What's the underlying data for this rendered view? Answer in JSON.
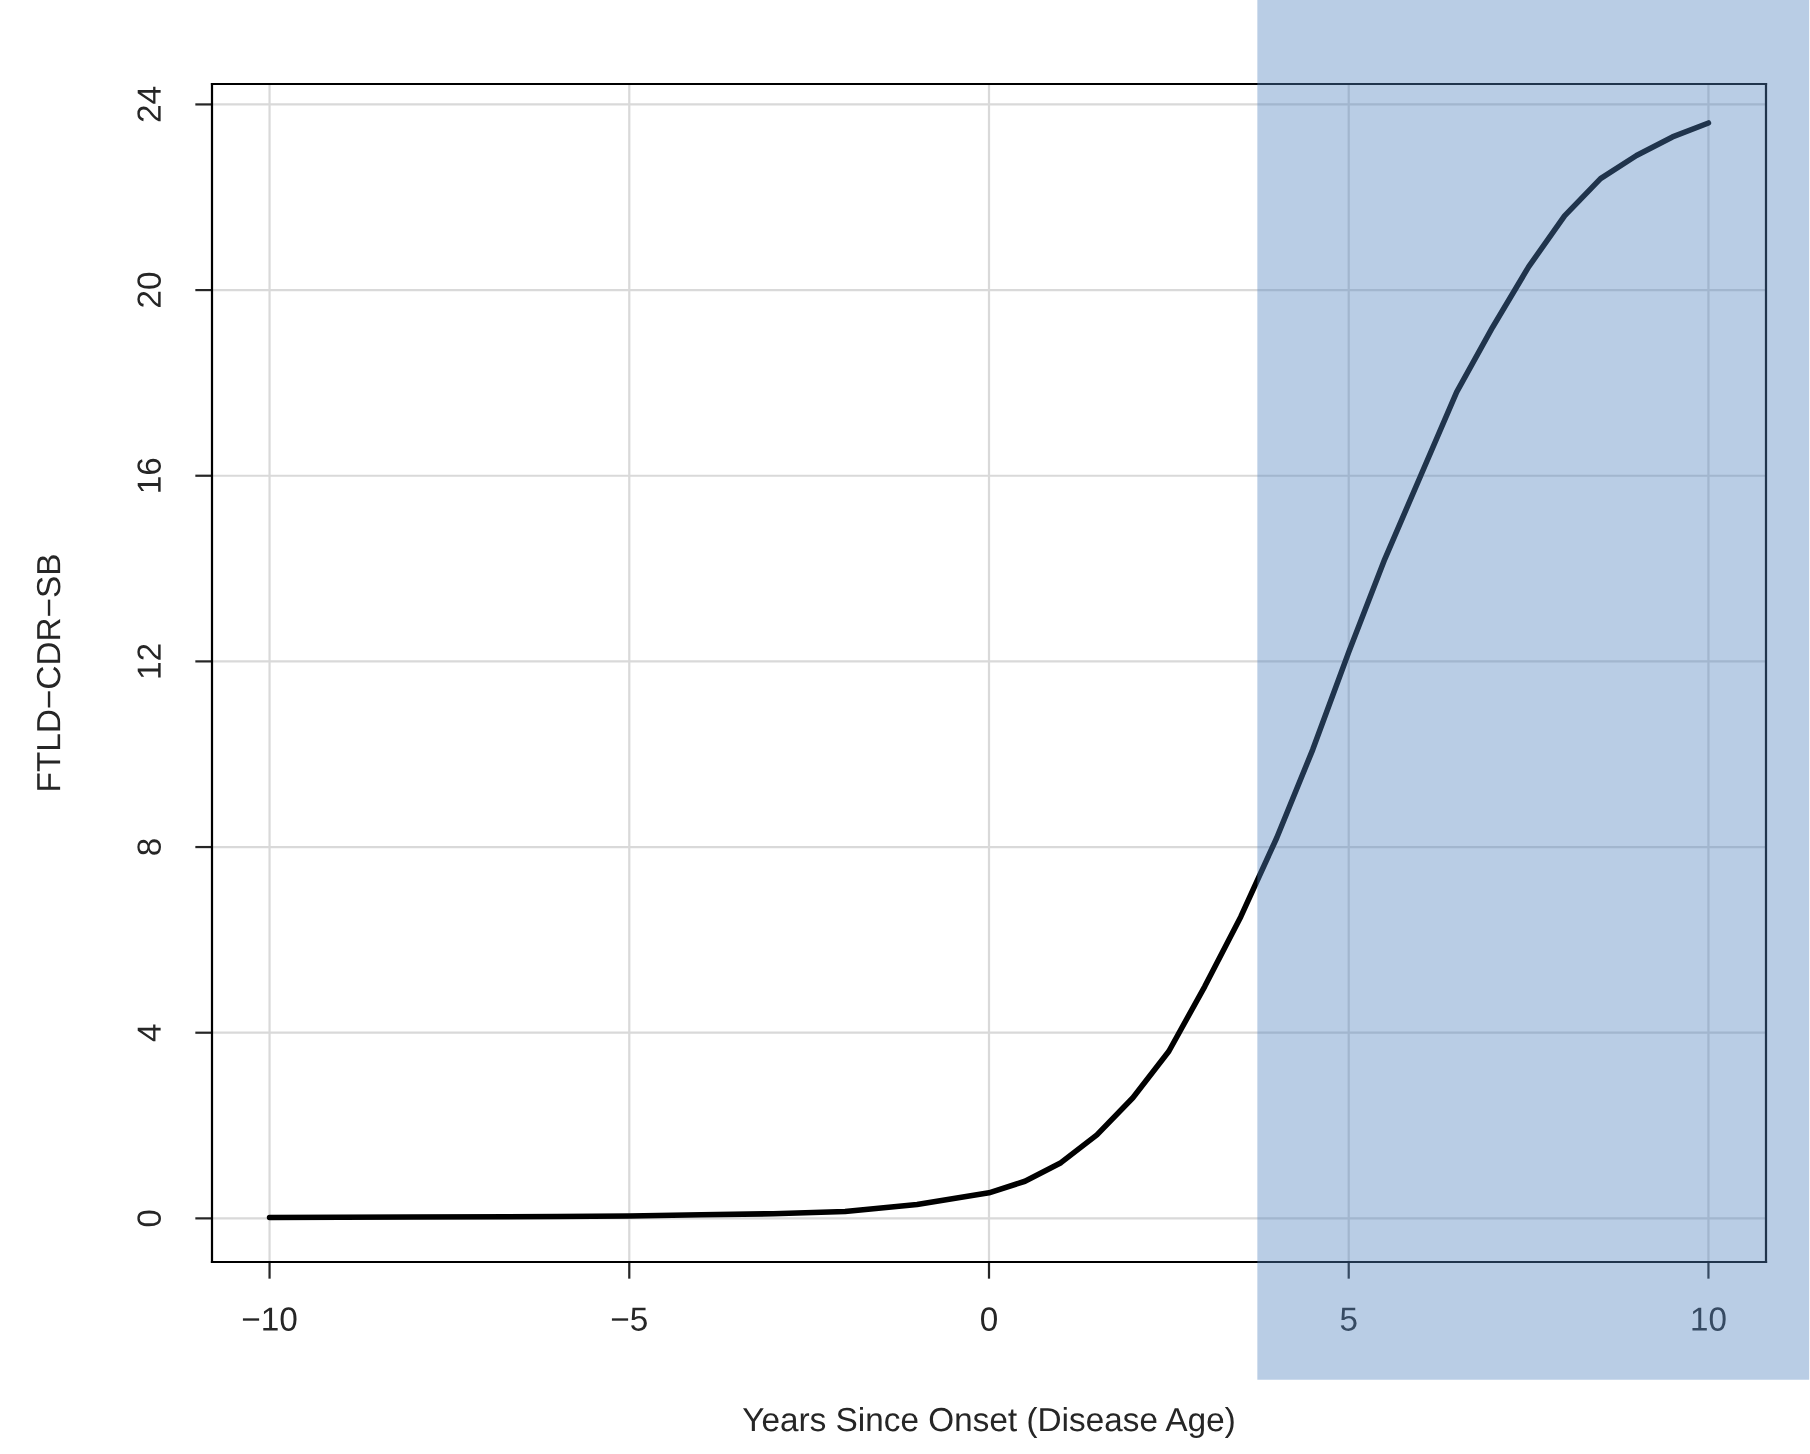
{
  "chart_data": {
    "type": "line",
    "xlabel": "Years Since Onset (Disease Age)",
    "ylabel": "FTLD−CDR−SB",
    "series": [
      {
        "color": "#000000",
        "x": [
          -10,
          -8,
          -6,
          -5,
          -4,
          -3,
          -2,
          -1,
          0,
          0.5,
          1,
          1.5,
          2,
          2.5,
          3,
          3.5,
          4,
          4.5,
          5,
          5.5,
          6,
          6.5,
          7,
          7.5,
          8,
          8.5,
          9,
          9.5,
          10
        ],
        "values": [
          0.02,
          0.03,
          0.04,
          0.05,
          0.08,
          0.1,
          0.15,
          0.3,
          0.55,
          0.8,
          1.2,
          1.8,
          2.6,
          3.6,
          5.0,
          6.5,
          8.2,
          10.1,
          12.2,
          14.2,
          16.0,
          17.8,
          19.2,
          20.5,
          21.6,
          22.4,
          22.9,
          23.3,
          23.6
        ]
      }
    ],
    "xlim": [
      -10.8,
      10.8
    ],
    "ylim": [
      -0.94,
      24.44
    ],
    "xticks": [
      {
        "value": -10,
        "label": "−10"
      },
      {
        "value": -5,
        "label": "−5"
      },
      0,
      5,
      10
    ],
    "yticks": [
      0,
      4,
      8,
      12,
      16,
      20,
      24
    ],
    "bands": [
      {
        "axis": "x",
        "from": 3.73,
        "to": 11.4,
        "color": "#4f81bd"
      }
    ],
    "grid": true,
    "legend": false,
    "line_style": "solid",
    "marker": "none"
  }
}
